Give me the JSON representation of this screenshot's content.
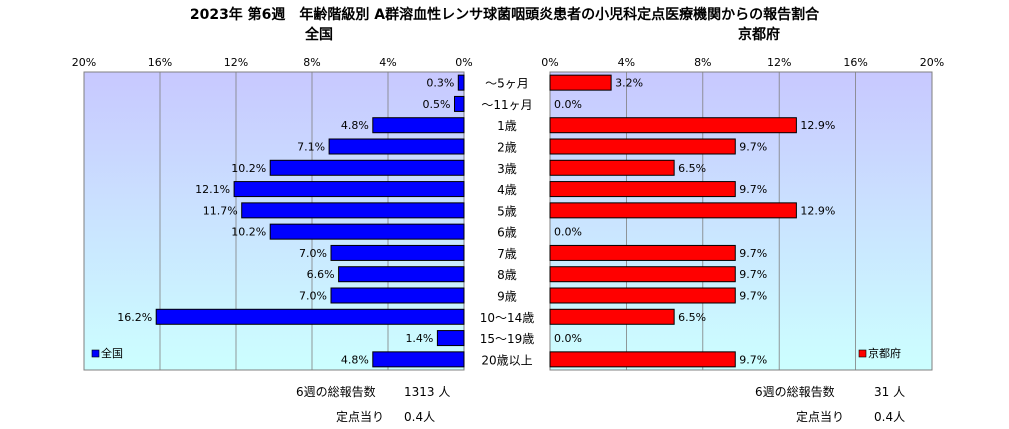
{
  "title": "2023年 第6週　年齢階級別 A群溶血性レンサ球菌咽頭炎患者の小児科定点医療機関からの報告割合",
  "colors": {
    "national_bar": "#0000ff",
    "kyoto_bar": "#ff0000",
    "plot_top": "#c8c8ff",
    "plot_bottom": "#ccffff"
  },
  "chart_data": [
    {
      "type": "bar",
      "orientation": "horizontal",
      "direction": "right-to-left",
      "title": "全国",
      "categories": [
        "～5ヶ月",
        "～11ヶ月",
        "1歳",
        "2歳",
        "3歳",
        "4歳",
        "5歳",
        "6歳",
        "7歳",
        "8歳",
        "9歳",
        "10～14歳",
        "15～19歳",
        "20歳以上"
      ],
      "series": [
        {
          "name": "全国",
          "values": [
            0.3,
            0.5,
            4.8,
            7.1,
            10.2,
            12.1,
            11.7,
            10.2,
            7.0,
            6.6,
            7.0,
            16.2,
            1.4,
            4.8
          ]
        }
      ],
      "value_labels": [
        "0.3%",
        "0.5%",
        "4.8%",
        "7.1%",
        "10.2%",
        "12.1%",
        "11.7%",
        "10.2%",
        "7.0%",
        "6.6%",
        "7.0%",
        "16.2%",
        "1.4%",
        "4.8%"
      ],
      "xlim": [
        0,
        20
      ],
      "xticks": [
        "20%",
        "16%",
        "12%",
        "8%",
        "4%",
        "0%"
      ],
      "grid": true,
      "legend": "bottom-left"
    },
    {
      "type": "bar",
      "orientation": "horizontal",
      "direction": "left-to-right",
      "title": "京都府",
      "categories": [
        "～5ヶ月",
        "～11ヶ月",
        "1歳",
        "2歳",
        "3歳",
        "4歳",
        "5歳",
        "6歳",
        "7歳",
        "8歳",
        "9歳",
        "10～14歳",
        "15～19歳",
        "20歳以上"
      ],
      "series": [
        {
          "name": "京都府",
          "values": [
            3.2,
            0.0,
            12.9,
            9.7,
            6.5,
            9.7,
            12.9,
            0.0,
            9.7,
            9.7,
            9.7,
            6.5,
            0.0,
            9.7
          ]
        }
      ],
      "value_labels": [
        "3.2%",
        "0.0%",
        "12.9%",
        "9.7%",
        "6.5%",
        "9.7%",
        "12.9%",
        "0.0%",
        "9.7%",
        "9.7%",
        "9.7%",
        "6.5%",
        "0.0%",
        "9.7%"
      ],
      "xlim": [
        0,
        20
      ],
      "xticks": [
        "0%",
        "4%",
        "8%",
        "12%",
        "16%",
        "20%"
      ],
      "grid": true,
      "legend": "bottom-right"
    }
  ],
  "footer": {
    "national_total_label": "6週の総報告数",
    "national_total_value": "1313 人",
    "national_per_label": "定点当り",
    "national_per_value": "0.4人",
    "kyoto_total_label": "6週の総報告数",
    "kyoto_total_value": "31 人",
    "kyoto_per_label": "定点当り",
    "kyoto_per_value": "0.4人"
  }
}
